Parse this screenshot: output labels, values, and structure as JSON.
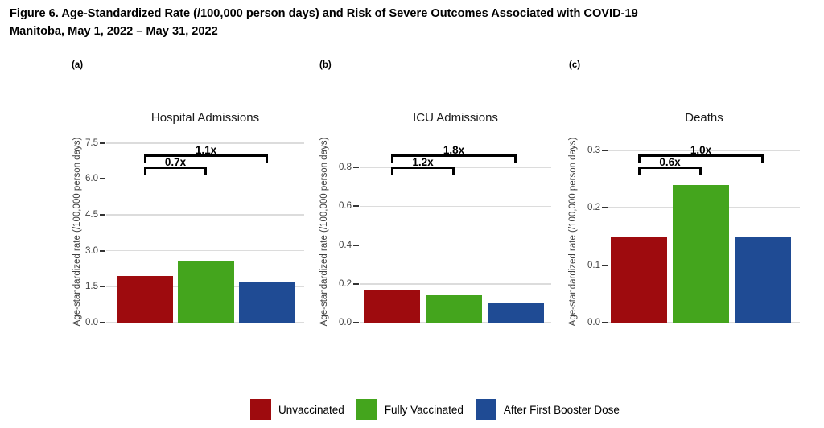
{
  "figure": {
    "title_line1": "Figure 6. Age-Standardized Rate (/100,000 person days) and Risk of Severe Outcomes Associated with COVID-19",
    "title_line2": "Manitoba, May 1, 2022 – May 31, 2022"
  },
  "colors": {
    "unvaccinated": "#9E0B0E",
    "fully_vaccinated": "#44A51D",
    "after_first_booster_dose": "#1F4B94",
    "series": [
      "#9E0B0E",
      "#44A51D",
      "#1F4B94"
    ],
    "gridline": "#DCDCDC",
    "axis_text": "#404040"
  },
  "legend": {
    "items": [
      {
        "label": "Unvaccinated",
        "color": "#9E0B0E"
      },
      {
        "label": "Fully Vaccinated",
        "color": "#44A51D"
      },
      {
        "label": "After First Booster Dose",
        "color": "#1F4B94"
      }
    ]
  },
  "chart_data": [
    {
      "type": "bar",
      "panel_label": "(a)",
      "title": "Hospital Admissions",
      "ylabel": "Age-standardized rate (/100,000 person days)",
      "categories": [
        "Unvaccinated",
        "Fully Vaccinated",
        "After First Booster Dose"
      ],
      "values": [
        1.95,
        2.6,
        1.7
      ],
      "ytick_labels": [
        "0.0",
        "1.5",
        "3.0",
        "4.5",
        "6.0",
        "7.5"
      ],
      "ylim": [
        0,
        8.1
      ],
      "grid": true,
      "legend_position": "bottom",
      "annotations": [
        {
          "label": "1.1x",
          "from_bar": 0,
          "to_bar": 2
        },
        {
          "label": "0.7x",
          "from_bar": 0,
          "to_bar": 1
        }
      ]
    },
    {
      "type": "bar",
      "panel_label": "(b)",
      "title": "ICU Admissions",
      "ylabel": "Age-standardized rate (/100,000 person days)",
      "categories": [
        "Unvaccinated",
        "Fully Vaccinated",
        "After First Booster Dose"
      ],
      "values": [
        0.17,
        0.14,
        0.1
      ],
      "ytick_labels": [
        "0.0",
        "0.2",
        "0.4",
        "0.6",
        "0.8"
      ],
      "ylim": [
        0,
        1.0
      ],
      "grid": true,
      "legend_position": "bottom",
      "annotations": [
        {
          "label": "1.8x",
          "from_bar": 0,
          "to_bar": 2
        },
        {
          "label": "1.2x",
          "from_bar": 0,
          "to_bar": 1
        }
      ]
    },
    {
      "type": "bar",
      "panel_label": "(c)",
      "title": "Deaths",
      "ylabel": "Age-standardized rate (/100,000 person days)",
      "categories": [
        "Unvaccinated",
        "Fully Vaccinated",
        "After First Booster Dose"
      ],
      "values": [
        0.15,
        0.24,
        0.15
      ],
      "ytick_labels": [
        "0.0",
        "0.1",
        "0.2",
        "0.3"
      ],
      "ylim": [
        0,
        0.3375
      ],
      "grid": true,
      "legend_position": "bottom",
      "annotations": [
        {
          "label": "1.0x",
          "from_bar": 0,
          "to_bar": 2
        },
        {
          "label": "0.6x",
          "from_bar": 0,
          "to_bar": 1
        }
      ]
    }
  ]
}
